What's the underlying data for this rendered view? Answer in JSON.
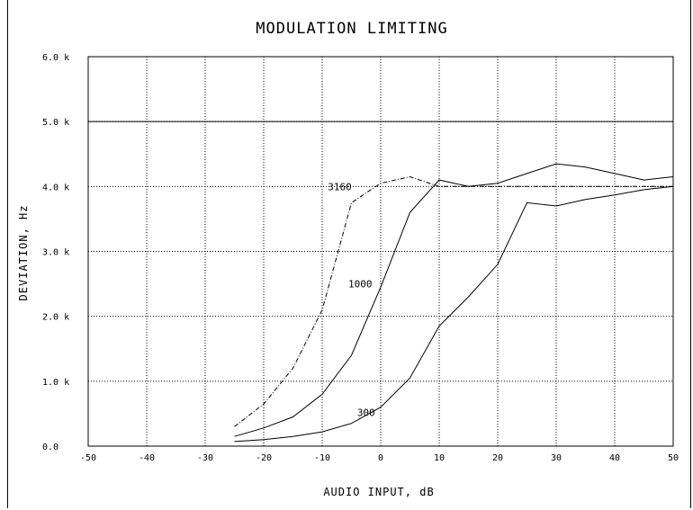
{
  "chart_data": {
    "type": "line",
    "title": "MODULATION LIMITING",
    "xlabel": "AUDIO INPUT, dB",
    "ylabel": "DEVIATION, Hz",
    "xlim": [
      -50,
      50
    ],
    "ylim": [
      0,
      6000
    ],
    "x_ticks": [
      -50,
      -40,
      -30,
      -20,
      -10,
      0,
      10,
      20,
      30,
      40,
      50
    ],
    "x_tick_labels": [
      "-50",
      "-40",
      "-30",
      "-20",
      "-10",
      "0",
      "10",
      "20",
      "30",
      "40",
      "50"
    ],
    "y_ticks": [
      0,
      1000,
      2000,
      3000,
      4000,
      5000,
      6000
    ],
    "y_tick_labels": [
      "0.0",
      "1.0 k",
      "2.0 k",
      "3.0 k",
      "4.0 k",
      "5.0 k",
      "6.0 k"
    ],
    "grid": true,
    "reference_line": {
      "y": 5000
    },
    "series": [
      {
        "name": "3160",
        "style": "dash-dot",
        "x": [
          -25,
          -20,
          -15,
          -10,
          -5,
          0,
          5,
          10,
          15,
          20,
          25,
          30,
          35,
          40,
          45,
          50
        ],
        "y": [
          300,
          650,
          1200,
          2100,
          3750,
          4050,
          4150,
          4000,
          4000,
          4000,
          4000,
          4000,
          4000,
          4000,
          4000,
          4000
        ]
      },
      {
        "name": "1000",
        "style": "solid",
        "x": [
          -25,
          -20,
          -15,
          -10,
          -5,
          0,
          5,
          10,
          15,
          20,
          25,
          30,
          35,
          40,
          45,
          50
        ],
        "y": [
          150,
          280,
          450,
          800,
          1400,
          2450,
          3600,
          4100,
          4000,
          4050,
          4200,
          4350,
          4300,
          4200,
          4100,
          4150
        ]
      },
      {
        "name": "300",
        "style": "solid",
        "x": [
          -25,
          -20,
          -15,
          -10,
          -5,
          0,
          5,
          10,
          15,
          20,
          25,
          30,
          35,
          40,
          45,
          50
        ],
        "y": [
          70,
          100,
          150,
          220,
          350,
          600,
          1050,
          1850,
          2300,
          2800,
          3750,
          3700,
          3800,
          3870,
          3950,
          4000
        ]
      }
    ]
  }
}
